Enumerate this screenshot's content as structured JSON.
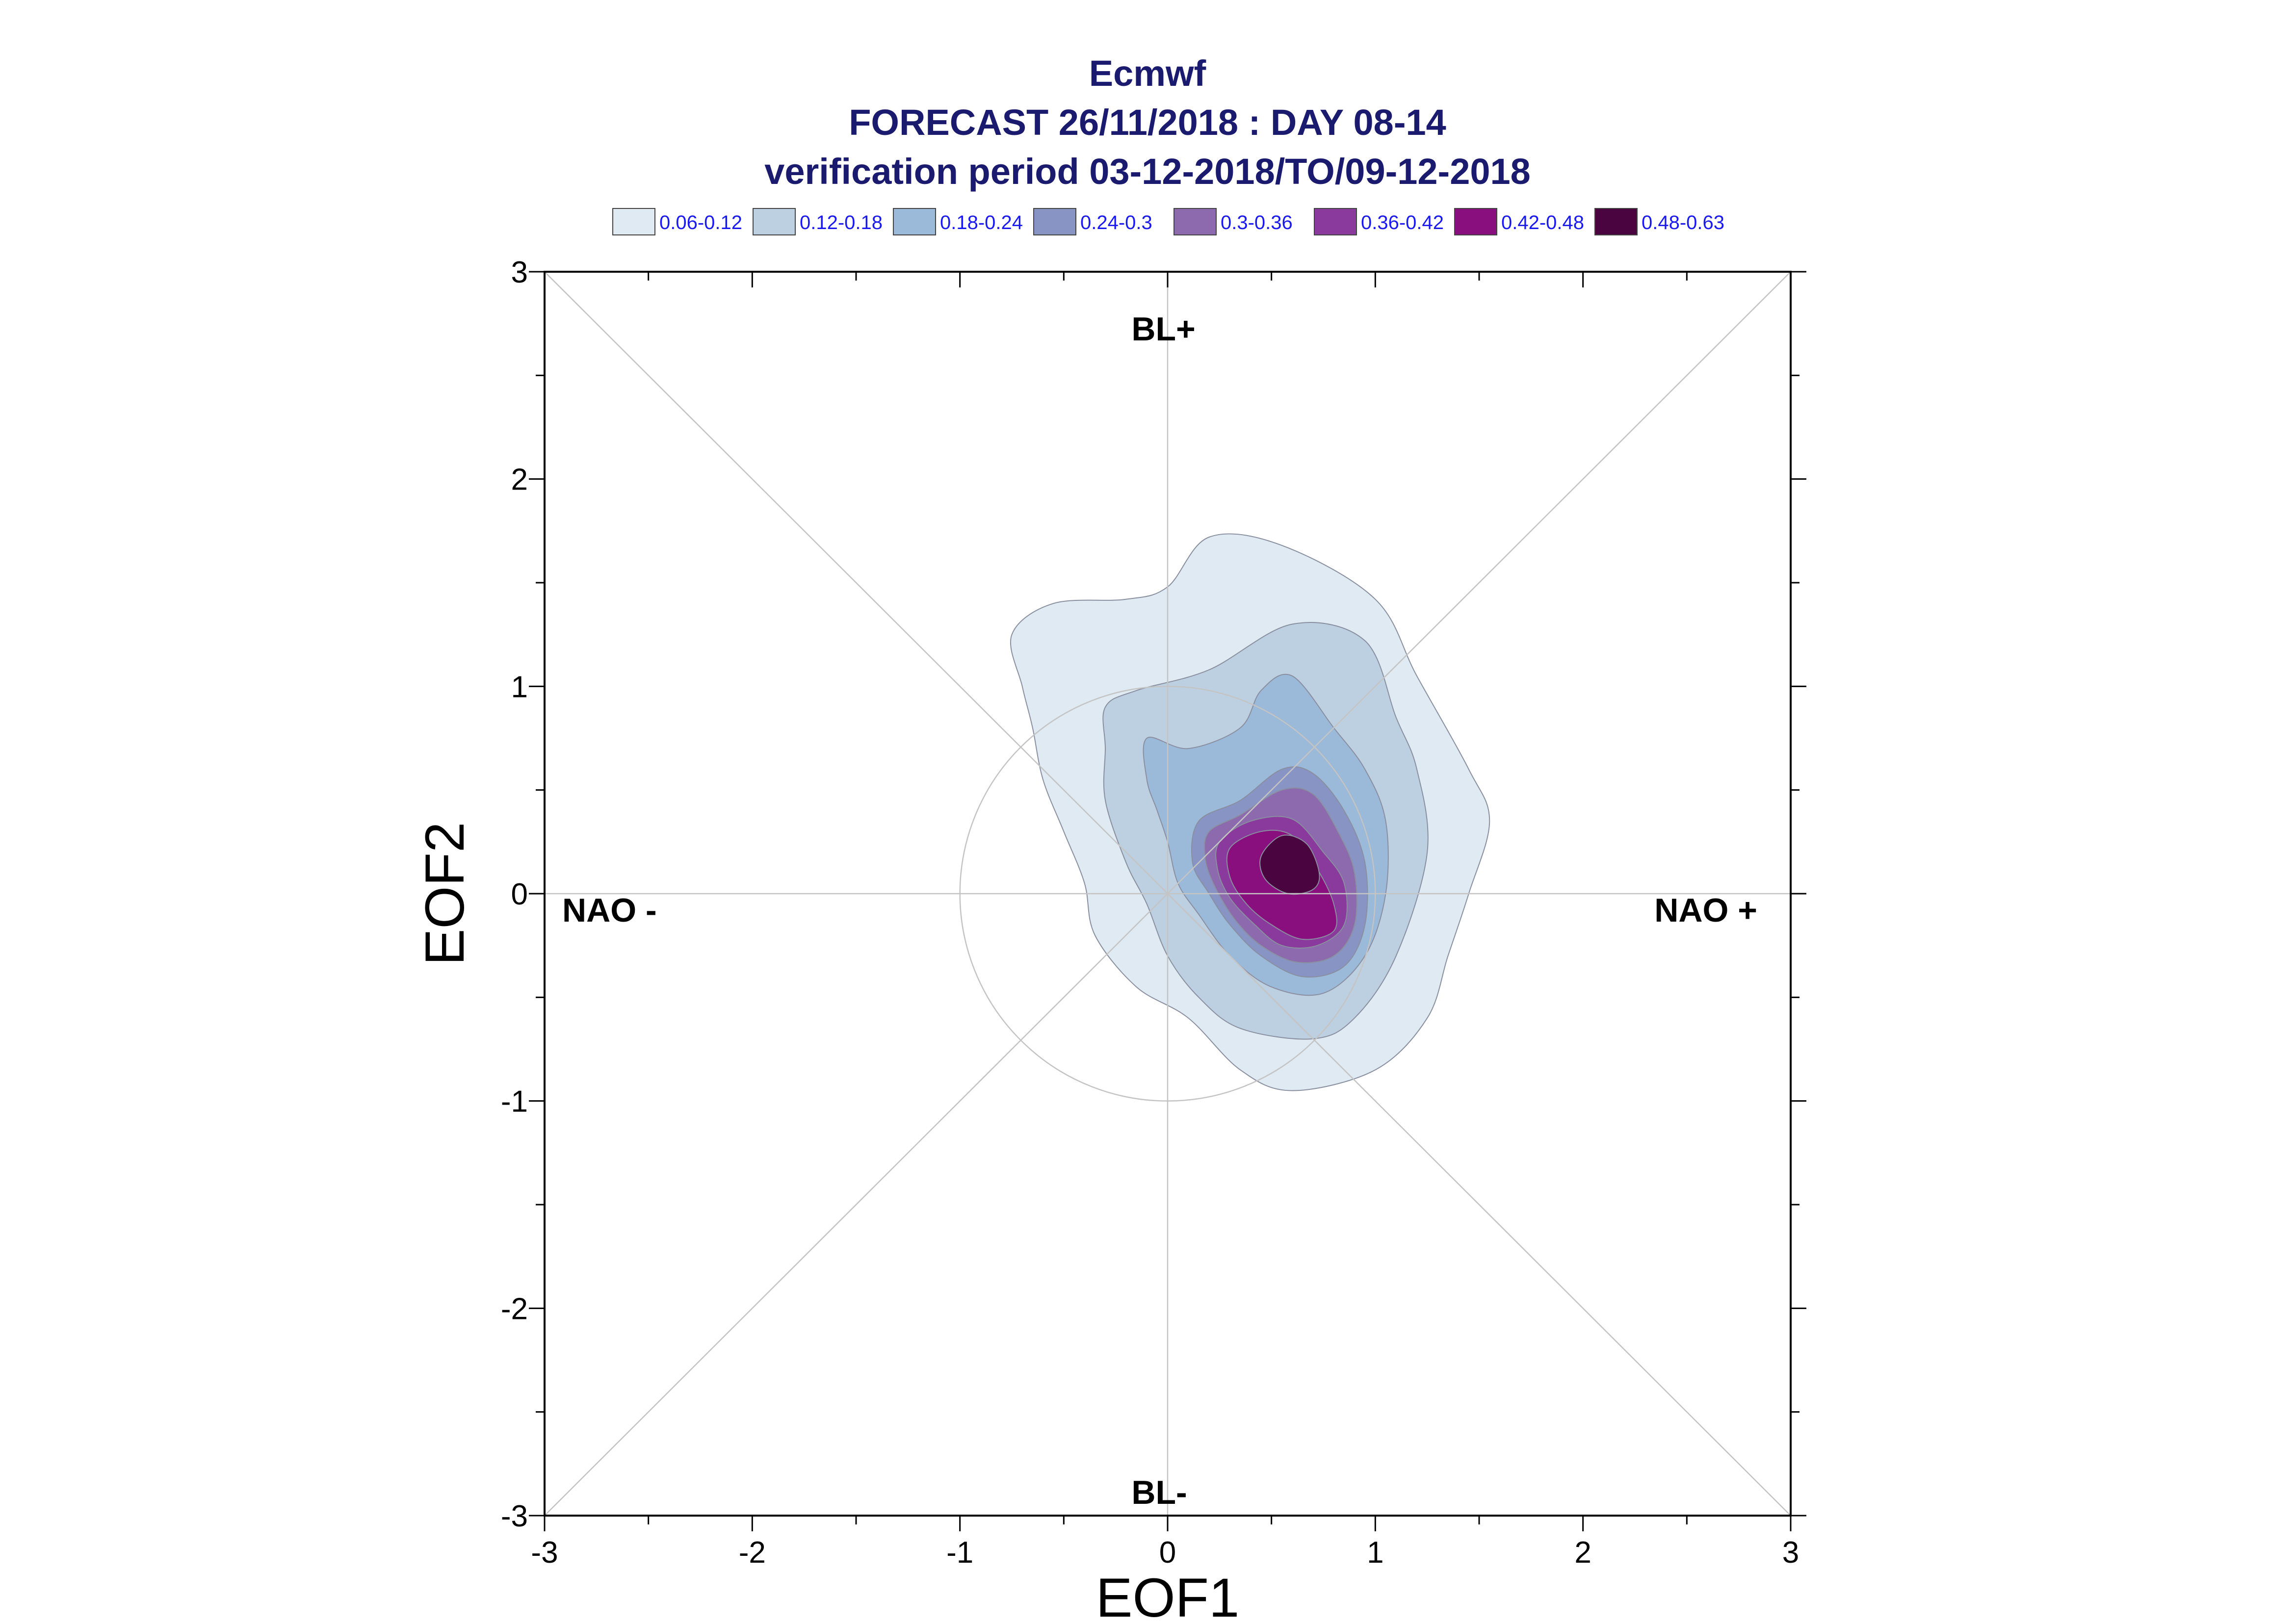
{
  "title": {
    "line1": "Ecmwf",
    "line2": "FORECAST 26/11/2018 : DAY 08-14",
    "line3": "verification period 03-12-2018/TO/09-12-2018"
  },
  "legend": [
    {
      "label": "0.06-0.12",
      "color": "#dfeaf2"
    },
    {
      "label": "0.12-0.18",
      "color": "#bdd0e1"
    },
    {
      "label": "0.18-0.24",
      "color": "#9bb9d8"
    },
    {
      "label": "0.24-0.3",
      "color": "#8894c4"
    },
    {
      "label": "0.3-0.36",
      "color": "#8c6aad"
    },
    {
      "label": "0.36-0.42",
      "color": "#8a3a9c"
    },
    {
      "label": "0.42-0.48",
      "color": "#8a0f7e"
    },
    {
      "label": "0.48-0.63",
      "color": "#4a0440"
    }
  ],
  "chart_data": {
    "type": "contour",
    "xlabel": "EOF1",
    "ylabel": "EOF2",
    "xlim": [
      -3,
      3
    ],
    "ylim": [
      -3,
      3
    ],
    "xticks": [
      "-3",
      "-2",
      "-1",
      "0",
      "1",
      "2",
      "3"
    ],
    "yticks": [
      "-3",
      "-2",
      "-1",
      "0",
      "1",
      "2",
      "3"
    ],
    "regime_labels": {
      "top": "BL+",
      "bottom": "BL-",
      "left": "NAO -",
      "right": "NAO +"
    },
    "reference_circle_radius": 1,
    "levels": [
      {
        "range": "0.06-0.12",
        "points": [
          [
            -0.7,
            1.0
          ],
          [
            -0.75,
            1.25
          ],
          [
            -0.55,
            1.4
          ],
          [
            -0.2,
            1.42
          ],
          [
            0.0,
            1.48
          ],
          [
            0.2,
            1.72
          ],
          [
            0.55,
            1.68
          ],
          [
            1.0,
            1.42
          ],
          [
            1.2,
            1.05
          ],
          [
            1.45,
            0.6
          ],
          [
            1.55,
            0.35
          ],
          [
            1.45,
            0.0
          ],
          [
            1.35,
            -0.3
          ],
          [
            1.25,
            -0.6
          ],
          [
            1.0,
            -0.85
          ],
          [
            0.6,
            -0.95
          ],
          [
            0.35,
            -0.85
          ],
          [
            0.1,
            -0.6
          ],
          [
            -0.15,
            -0.45
          ],
          [
            -0.35,
            -0.2
          ],
          [
            -0.4,
            0.05
          ],
          [
            -0.5,
            0.3
          ],
          [
            -0.6,
            0.55
          ],
          [
            -0.65,
            0.8
          ]
        ]
      },
      {
        "range": "0.12-0.18",
        "points": [
          [
            -0.3,
            0.9
          ],
          [
            -0.15,
            0.98
          ],
          [
            0.2,
            1.08
          ],
          [
            0.6,
            1.3
          ],
          [
            0.95,
            1.22
          ],
          [
            1.1,
            0.85
          ],
          [
            1.2,
            0.6
          ],
          [
            1.25,
            0.2
          ],
          [
            1.1,
            -0.3
          ],
          [
            0.9,
            -0.6
          ],
          [
            0.7,
            -0.7
          ],
          [
            0.35,
            -0.65
          ],
          [
            0.15,
            -0.5
          ],
          [
            0.0,
            -0.3
          ],
          [
            -0.1,
            -0.05
          ],
          [
            -0.2,
            0.15
          ],
          [
            -0.3,
            0.45
          ],
          [
            -0.3,
            0.7
          ]
        ]
      },
      {
        "range": "0.18-0.24",
        "points": [
          [
            -0.1,
            0.75
          ],
          [
            0.1,
            0.7
          ],
          [
            0.35,
            0.8
          ],
          [
            0.45,
            0.98
          ],
          [
            0.6,
            1.05
          ],
          [
            0.8,
            0.8
          ],
          [
            0.95,
            0.6
          ],
          [
            1.05,
            0.35
          ],
          [
            1.05,
            0.0
          ],
          [
            0.95,
            -0.3
          ],
          [
            0.75,
            -0.48
          ],
          [
            0.5,
            -0.45
          ],
          [
            0.3,
            -0.3
          ],
          [
            0.15,
            -0.1
          ],
          [
            0.05,
            0.05
          ],
          [
            0.0,
            0.25
          ],
          [
            -0.05,
            0.4
          ],
          [
            -0.1,
            0.55
          ]
        ]
      },
      {
        "range": "0.24-0.3",
        "points": [
          [
            0.15,
            0.35
          ],
          [
            0.35,
            0.45
          ],
          [
            0.55,
            0.6
          ],
          [
            0.7,
            0.58
          ],
          [
            0.85,
            0.4
          ],
          [
            0.95,
            0.15
          ],
          [
            0.95,
            -0.15
          ],
          [
            0.85,
            -0.35
          ],
          [
            0.65,
            -0.4
          ],
          [
            0.45,
            -0.3
          ],
          [
            0.3,
            -0.15
          ],
          [
            0.2,
            0.0
          ],
          [
            0.12,
            0.15
          ]
        ]
      },
      {
        "range": "0.3-0.36",
        "points": [
          [
            0.2,
            0.3
          ],
          [
            0.35,
            0.38
          ],
          [
            0.55,
            0.5
          ],
          [
            0.7,
            0.48
          ],
          [
            0.82,
            0.3
          ],
          [
            0.9,
            0.1
          ],
          [
            0.9,
            -0.15
          ],
          [
            0.8,
            -0.3
          ],
          [
            0.62,
            -0.33
          ],
          [
            0.45,
            -0.25
          ],
          [
            0.32,
            -0.12
          ],
          [
            0.22,
            0.05
          ],
          [
            0.18,
            0.18
          ]
        ]
      },
      {
        "range": "0.36-0.42",
        "points": [
          [
            0.25,
            0.25
          ],
          [
            0.4,
            0.35
          ],
          [
            0.6,
            0.36
          ],
          [
            0.75,
            0.2
          ],
          [
            0.85,
            0.05
          ],
          [
            0.85,
            -0.15
          ],
          [
            0.72,
            -0.25
          ],
          [
            0.55,
            -0.25
          ],
          [
            0.42,
            -0.15
          ],
          [
            0.3,
            -0.02
          ],
          [
            0.24,
            0.12
          ]
        ]
      },
      {
        "range": "0.42-0.48",
        "points": [
          [
            0.3,
            0.22
          ],
          [
            0.45,
            0.3
          ],
          [
            0.6,
            0.28
          ],
          [
            0.72,
            0.12
          ],
          [
            0.8,
            -0.05
          ],
          [
            0.8,
            -0.18
          ],
          [
            0.65,
            -0.22
          ],
          [
            0.5,
            -0.15
          ],
          [
            0.38,
            -0.05
          ],
          [
            0.3,
            0.08
          ]
        ]
      },
      {
        "range": "0.48-0.63",
        "points": [
          [
            0.45,
            0.18
          ],
          [
            0.55,
            0.28
          ],
          [
            0.67,
            0.24
          ],
          [
            0.73,
            0.1
          ],
          [
            0.7,
            0.02
          ],
          [
            0.58,
            0.0
          ],
          [
            0.47,
            0.07
          ]
        ]
      }
    ]
  }
}
